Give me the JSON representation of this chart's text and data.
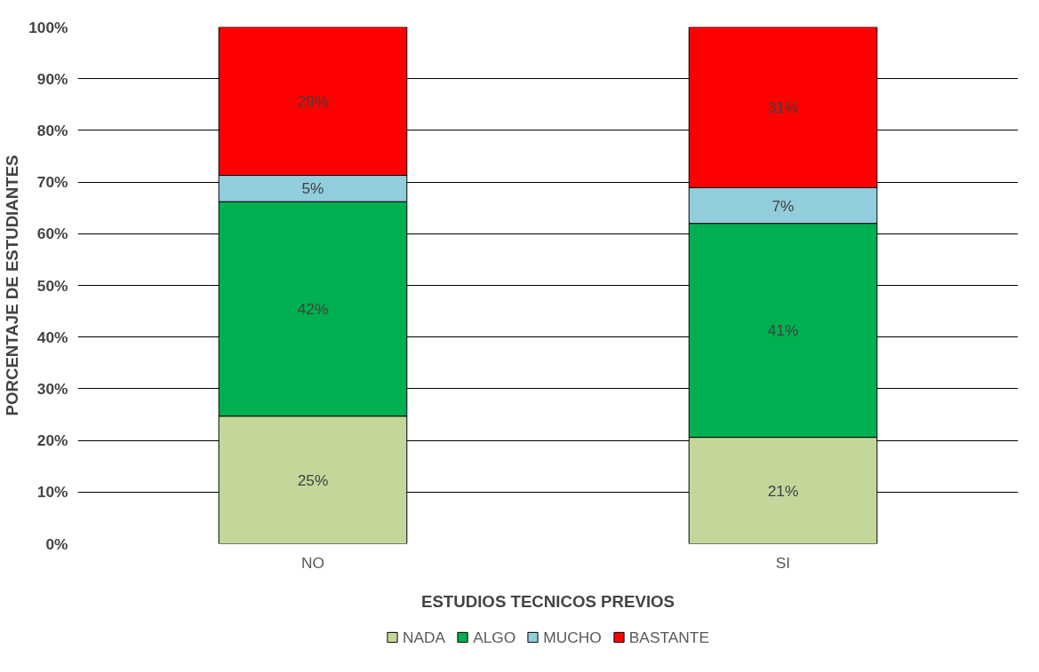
{
  "chart_data": {
    "type": "bar",
    "stacked": true,
    "xlabel": "ESTUDIOS TECNICOS PREVIOS",
    "ylabel": "PORCENTAJE DE ESTUDIANTES",
    "categories": [
      "NO",
      "SI"
    ],
    "series": [
      {
        "name": "NADA",
        "color": "#c4d79b",
        "values": [
          24.7,
          20.6
        ],
        "value_labels": [
          "25%",
          "21%"
        ]
      },
      {
        "name": "ALGO",
        "color": "#00b050",
        "values": [
          41.5,
          41.4
        ],
        "value_labels": [
          "42%",
          "41%"
        ]
      },
      {
        "name": "MUCHO",
        "color": "#92cddc",
        "values": [
          5.1,
          6.9
        ],
        "value_labels": [
          "5%",
          "7%"
        ]
      },
      {
        "name": "BASTANTE",
        "color": "#ff0000",
        "values": [
          28.7,
          31.1
        ],
        "value_labels": [
          "29%",
          "31%"
        ]
      }
    ],
    "ylim": [
      0,
      100
    ],
    "yticks": [
      {
        "value": 0,
        "label": "0%"
      },
      {
        "value": 10,
        "label": "10%"
      },
      {
        "value": 20,
        "label": "20%"
      },
      {
        "value": 30,
        "label": "30%"
      },
      {
        "value": 40,
        "label": "40%"
      },
      {
        "value": 50,
        "label": "50%"
      },
      {
        "value": 60,
        "label": "60%"
      },
      {
        "value": 70,
        "label": "70%"
      },
      {
        "value": 80,
        "label": "80%"
      },
      {
        "value": 90,
        "label": "90%"
      },
      {
        "value": 100,
        "label": "100%"
      }
    ],
    "grid": "y",
    "legend": "bottom"
  }
}
